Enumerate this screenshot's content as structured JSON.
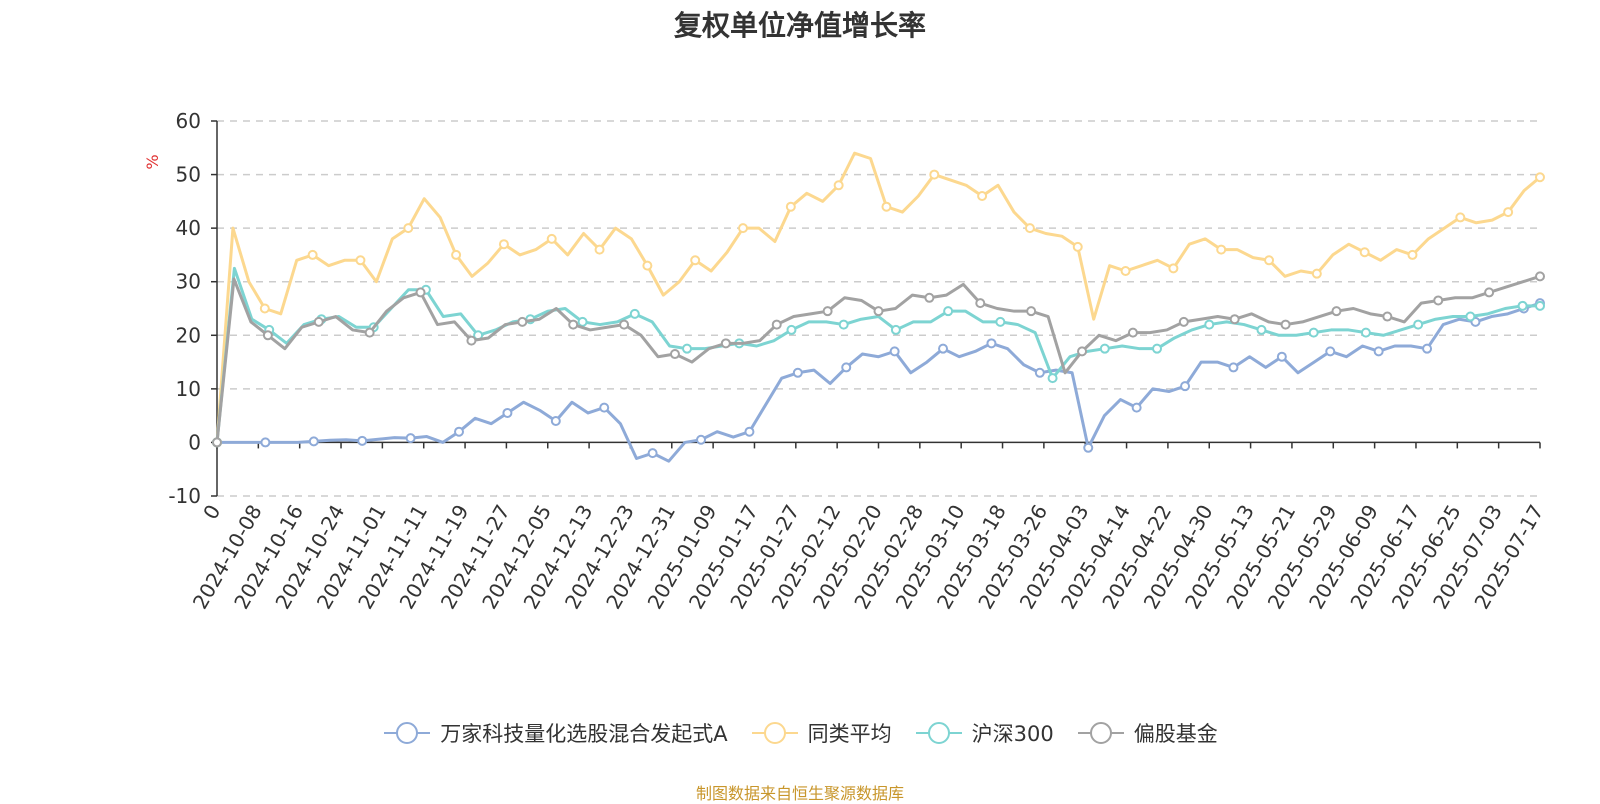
{
  "chart_data": {
    "type": "line",
    "title": "复权单位净值增长率",
    "ylabel": "%",
    "ylim": [
      -10,
      60
    ],
    "yticks": [
      -10,
      0,
      10,
      20,
      30,
      40,
      50,
      60
    ],
    "grid": true,
    "legend_position": "bottom",
    "x_tick_labels": [
      "0",
      "2024-10-08",
      "2024-10-16",
      "2024-10-24",
      "2024-11-01",
      "2024-11-11",
      "2024-11-19",
      "2024-11-27",
      "2024-12-05",
      "2024-12-13",
      "2024-12-23",
      "2024-12-31",
      "2025-01-09",
      "2025-01-17",
      "2025-01-27",
      "2025-02-12",
      "2025-02-20",
      "2025-02-28",
      "2025-03-10",
      "2025-03-18",
      "2025-03-26",
      "2025-04-03",
      "2025-04-14",
      "2025-04-22",
      "2025-04-30",
      "2025-05-13",
      "2025-05-21",
      "2025-05-29",
      "2025-06-09",
      "2025-06-17",
      "2025-06-25",
      "2025-07-03",
      "2025-07-17"
    ],
    "series": [
      {
        "name": "万家科技量化选股混合发起式A",
        "color": "#8eaad8",
        "values": [
          0,
          0,
          0,
          0,
          0,
          0,
          0.2,
          0.4,
          0.5,
          0.3,
          0.6,
          0.9,
          0.8,
          1.1,
          0,
          2,
          4.5,
          3.5,
          5.5,
          7.5,
          6,
          4,
          7.5,
          5.5,
          6.5,
          3.5,
          -3,
          -2,
          -3.5,
          0,
          0.5,
          2,
          1,
          2,
          7,
          12,
          13,
          13.5,
          11,
          14,
          16.5,
          16,
          17,
          13,
          15,
          17.5,
          16,
          17,
          18.5,
          17.5,
          14.5,
          13,
          13.5,
          13,
          -1,
          5,
          8,
          6.5,
          10,
          9.5,
          10.5,
          15,
          15,
          14,
          16,
          14,
          16,
          13,
          15,
          17,
          16,
          18,
          17,
          18,
          18,
          17.5,
          22,
          23,
          22.5,
          23.5,
          24,
          25,
          26
        ]
      },
      {
        "name": "同类平均",
        "color": "#fcd88f",
        "values": [
          0,
          40,
          30,
          25,
          24,
          34,
          35,
          33,
          34,
          34,
          30,
          38,
          40,
          45.5,
          42,
          35,
          31,
          33.5,
          37,
          35,
          36,
          38,
          35,
          39,
          36,
          40,
          38,
          33,
          27.5,
          30,
          34,
          32,
          35.5,
          40,
          40,
          37.5,
          44,
          46.5,
          45,
          48,
          54,
          53,
          44,
          43,
          46,
          50,
          49,
          48,
          46,
          48,
          43,
          40,
          39,
          38.5,
          36.5,
          23,
          33,
          32,
          33,
          34,
          32.5,
          37,
          38,
          36,
          36,
          34.5,
          34,
          31,
          32,
          31.5,
          35,
          37,
          35.5,
          34,
          36,
          35,
          38,
          40,
          42,
          41,
          41.5,
          43,
          47,
          49.5
        ]
      },
      {
        "name": "沪深300",
        "color": "#7dd4d2",
        "values": [
          0,
          32.5,
          23,
          21,
          18.5,
          22,
          23,
          23.5,
          21.5,
          21.5,
          25,
          28.5,
          28.5,
          23.5,
          24,
          20,
          21,
          22.5,
          23,
          24.5,
          25,
          22.5,
          22,
          22.5,
          24,
          22.5,
          18,
          17.5,
          17.5,
          18,
          18.5,
          18,
          19,
          21,
          22.5,
          22.5,
          22,
          23,
          23.5,
          21,
          22.5,
          22.5,
          24.5,
          24.5,
          22.5,
          22.5,
          22,
          20.5,
          12,
          16,
          17,
          17.5,
          18,
          17.5,
          17.5,
          19.5,
          21,
          22,
          22.5,
          22,
          21,
          20,
          20,
          20.5,
          21,
          21,
          20.5,
          20,
          21,
          22,
          23,
          23.5,
          23.5,
          24,
          25,
          25.5,
          25.5
        ]
      },
      {
        "name": "偏股基金",
        "color": "#a2a2a2",
        "values": [
          0,
          30.5,
          22.5,
          20,
          17.5,
          21.5,
          22.5,
          23.5,
          21,
          20.5,
          24.5,
          27,
          28,
          22,
          22.5,
          19,
          19.5,
          22,
          22.5,
          23,
          25,
          22,
          21,
          21.5,
          22,
          20,
          16,
          16.5,
          15,
          17.5,
          18.5,
          18.5,
          19,
          22,
          23.5,
          24,
          24.5,
          27,
          26.5,
          24.5,
          25,
          27.5,
          27,
          27.5,
          29.5,
          26,
          25,
          24.5,
          24.5,
          23.5,
          13,
          17,
          20,
          19,
          20.5,
          20.5,
          21,
          22.5,
          23,
          23.5,
          23,
          24,
          22.5,
          22,
          22.5,
          23.5,
          24.5,
          25,
          24,
          23.5,
          22.5,
          26,
          26.5,
          27,
          27,
          28,
          29,
          30,
          31
        ]
      }
    ]
  },
  "footer": {
    "source": "制图数据来自恒生聚源数据库"
  }
}
